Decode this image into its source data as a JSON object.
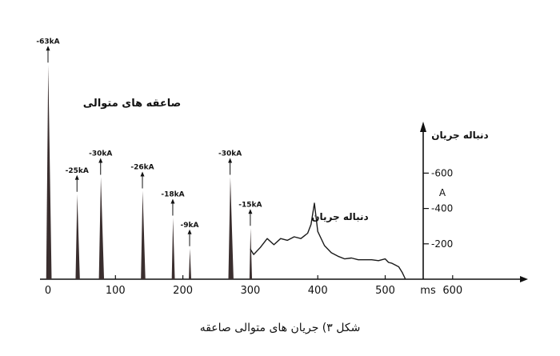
{
  "caption": "شکل ۳) جریان های متوالی صاعقه",
  "chart_data": {
    "type": "bar",
    "title": "صاعقه های متوالی",
    "x_unit": "ms",
    "x_ticks": [
      0,
      100,
      200,
      300,
      400,
      500,
      600
    ],
    "xlim": [
      0,
      620
    ],
    "right_axis": {
      "label": "دنباله جریان",
      "unit": "A",
      "ticks": [
        200,
        400,
        600
      ],
      "ylim": [
        0,
        700
      ]
    },
    "strokes": [
      {
        "time_ms": 0,
        "label": "-63kA",
        "peak_kA": 63
      },
      {
        "time_ms": 43,
        "label": "-25kA",
        "peak_kA": 25
      },
      {
        "time_ms": 78,
        "label": "-30kA",
        "peak_kA": 30
      },
      {
        "time_ms": 140,
        "label": "-26kA",
        "peak_kA": 26
      },
      {
        "time_ms": 185,
        "label": "-18kA",
        "peak_kA": 18
      },
      {
        "time_ms": 210,
        "label": "-9kA",
        "peak_kA": 9
      },
      {
        "time_ms": 270,
        "label": "-30kA",
        "peak_kA": 30
      },
      {
        "time_ms": 300,
        "label": "-15kA",
        "peak_kA": 15
      }
    ],
    "continuing_current": {
      "label": "دنباله جریان",
      "x": [
        300,
        305,
        315,
        325,
        335,
        345,
        355,
        365,
        375,
        385,
        390,
        395,
        400,
        410,
        420,
        430,
        440,
        450,
        460,
        470,
        480,
        490,
        500,
        505,
        510,
        515,
        520,
        525,
        530
      ],
      "y": [
        170,
        140,
        180,
        230,
        195,
        230,
        220,
        240,
        230,
        260,
        310,
        430,
        270,
        190,
        150,
        130,
        115,
        120,
        110,
        110,
        110,
        105,
        115,
        95,
        90,
        80,
        70,
        40,
        0
      ]
    }
  }
}
